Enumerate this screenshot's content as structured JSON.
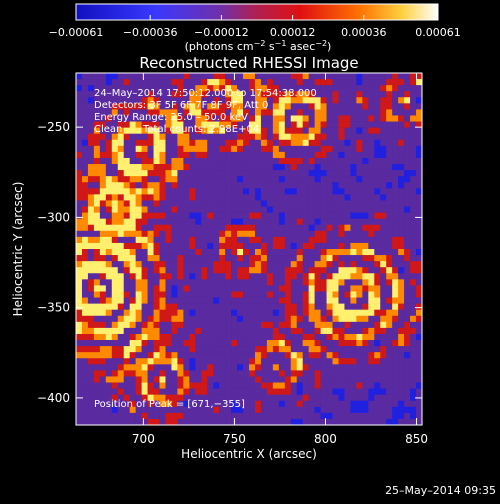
{
  "chart_data": {
    "type": "heatmap",
    "title": "Reconstructed RHESSI Image",
    "xlabel": "Heliocentric X (arcsec)",
    "ylabel": "Heliocentric Y (arcsec)",
    "xlim": [
      663,
      853
    ],
    "ylim": [
      -415,
      -220
    ],
    "x_ticks": [
      700,
      750,
      800,
      850
    ],
    "x_tick_labels": [
      "700",
      "750",
      "800",
      "850"
    ],
    "y_ticks": [
      -250,
      -300,
      -350,
      -400
    ],
    "y_tick_labels": [
      "−250",
      "−300",
      "−350",
      "−400"
    ],
    "colorbar": {
      "ticks": [
        -0.00061,
        -0.00036,
        -0.00012,
        0.00012,
        0.00036,
        0.00061
      ],
      "tick_labels": [
        "−0.00061",
        "−0.00036",
        "−0.00012",
        "0.00012",
        "0.00036",
        "0.00061"
      ],
      "unit_prefix": "(photons cm",
      "unit_sup1": "−2",
      "unit_mid1": " s",
      "unit_sup2": "−1",
      "unit_mid2": " asec",
      "unit_sup3": "−2",
      "unit_suffix": ")"
    },
    "annotations": {
      "time": "24–May–2014 17:50:12.000 to 17:54:38.000",
      "detectors": "Detectors: 3F 5F 6F 7F 8F 9F, Att 0",
      "energy": "Energy Range: 25.0 – 50.0 keV",
      "clean": "Clean",
      "counts": "Total counts: 2.98E+04",
      "peak": "Position of Peak = [671,−355]"
    },
    "colors": {
      "background": "#000000",
      "purple": "#5a2aa0",
      "blue": "#2020e0",
      "red": "#d01818",
      "orange": "#ff8a00",
      "yellow": "#fff070"
    }
  },
  "footer": {
    "timestamp": "25–May–2014 09:35"
  }
}
